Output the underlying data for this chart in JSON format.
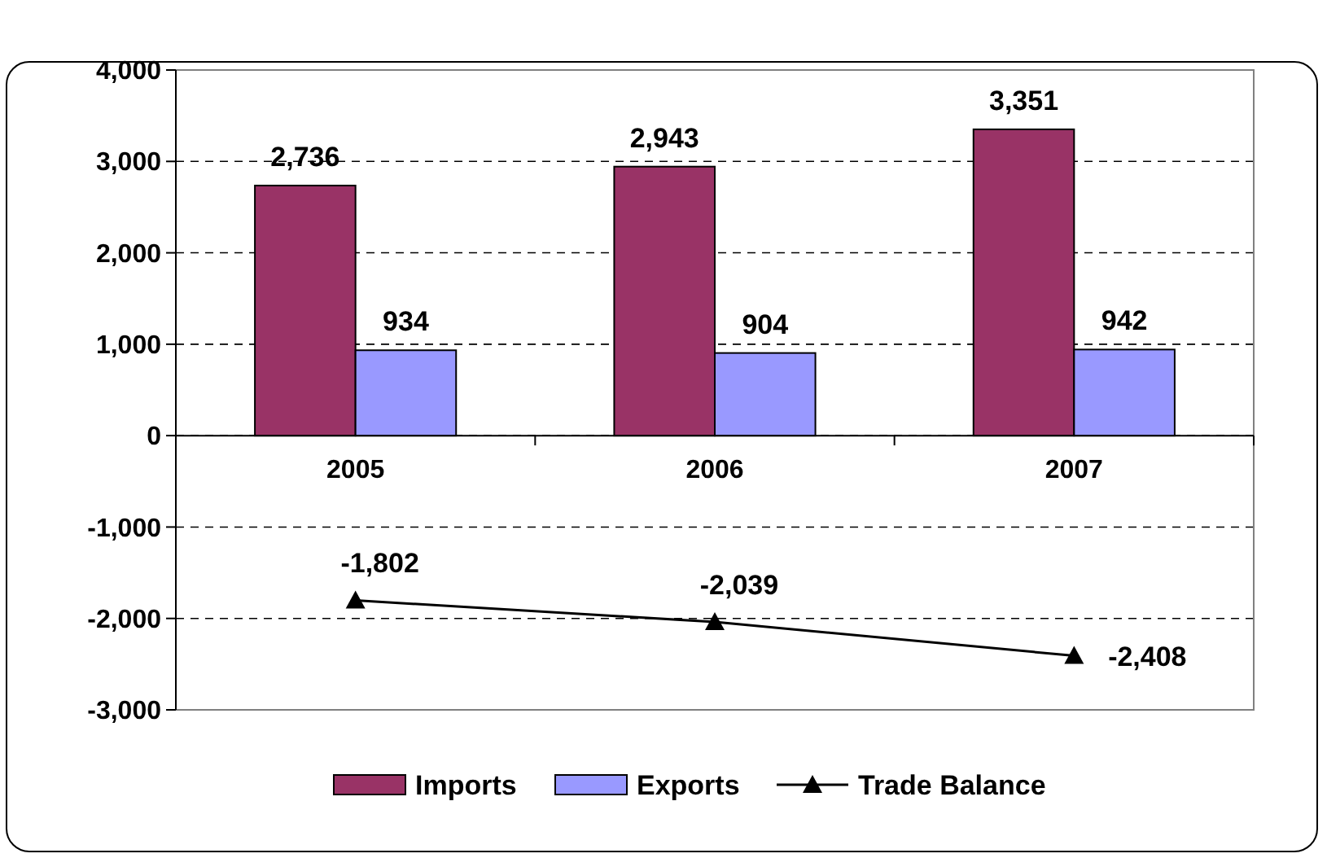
{
  "chart_data": {
    "type": "bar",
    "categories": [
      "2005",
      "2006",
      "2007"
    ],
    "series": [
      {
        "name": "Imports",
        "color": "#993366",
        "values": [
          2736,
          2943,
          3351
        ],
        "value_labels": [
          "2,736",
          "2,943",
          "3,351"
        ]
      },
      {
        "name": "Exports",
        "color": "#9999ff",
        "values": [
          934,
          904,
          942
        ],
        "value_labels": [
          "934",
          "904",
          "942"
        ]
      },
      {
        "name": "Trade Balance",
        "type": "line",
        "color": "#000000",
        "marker": "triangle",
        "values": [
          -1802,
          -2039,
          -2408
        ],
        "value_labels": [
          "-1,802",
          "-2,039",
          "-2,408"
        ]
      }
    ],
    "ylim": [
      -3000,
      4000
    ],
    "yticks": [
      {
        "value": -3000,
        "label": "-3,000"
      },
      {
        "value": -2000,
        "label": "-2,000"
      },
      {
        "value": -1000,
        "label": "-1,000"
      },
      0,
      {
        "value": 1000,
        "label": "1,000"
      },
      {
        "value": 2000,
        "label": "2,000"
      },
      {
        "value": 3000,
        "label": "3,000"
      },
      {
        "value": 4000,
        "label": "4,000"
      }
    ],
    "grid": "y",
    "legend": "bottom"
  }
}
